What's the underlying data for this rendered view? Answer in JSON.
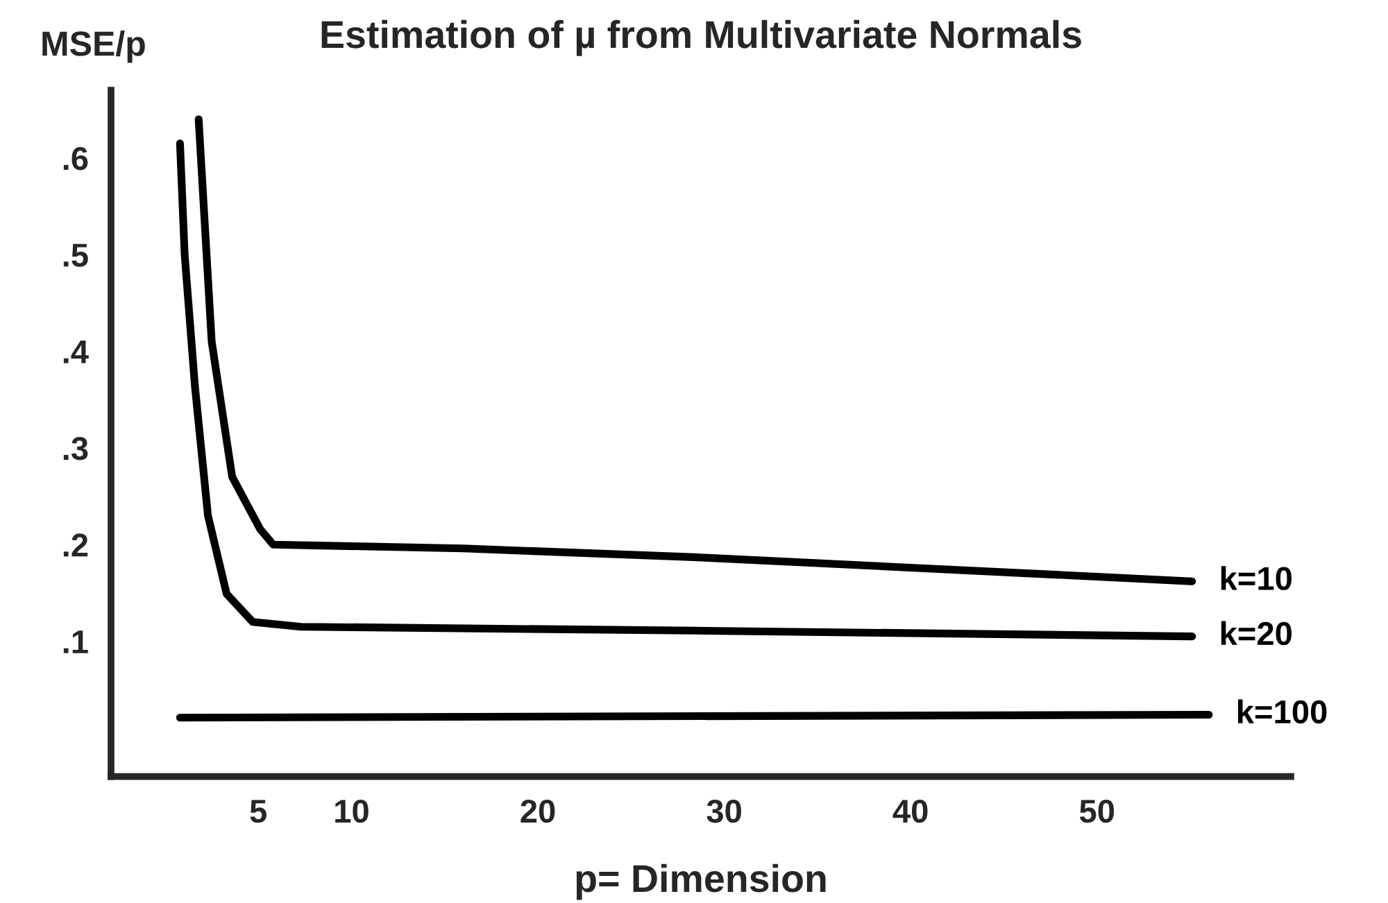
{
  "chart_data": {
    "type": "line",
    "title": "Estimation of µ from Multivariate Normals",
    "xlabel": "p= Dimension",
    "ylabel": "MSE/p",
    "xlim": [
      -2.9,
      60.4
    ],
    "ylim": [
      -0.04,
      0.67
    ],
    "xticks": [
      5,
      10,
      20,
      30,
      40,
      50
    ],
    "yticks": [
      {
        "value": 0.1,
        "label": ".1"
      },
      {
        "value": 0.2,
        "label": ".2"
      },
      {
        "value": 0.3,
        "label": ".3"
      },
      {
        "value": 0.4,
        "label": ".4"
      },
      {
        "value": 0.5,
        "label": ".5"
      },
      {
        "value": 0.6,
        "label": ".6"
      }
    ],
    "grid": false,
    "legend": false,
    "marker": "none",
    "line_style": "solid",
    "series": [
      {
        "name": "k=10",
        "color": "#000000",
        "x": [
          1.8,
          2.5,
          3.6,
          5.1,
          5.8,
          16,
          28.4,
          55.1
        ],
        "values": [
          0.64,
          0.41,
          0.27,
          0.216,
          0.2,
          0.196,
          0.187,
          0.162
        ]
      },
      {
        "name": "k=20",
        "color": "#000000",
        "x": [
          0.8,
          1.05,
          1.6,
          2.3,
          3.3,
          4.7,
          7.3,
          28.4,
          55.1
        ],
        "values": [
          0.615,
          0.5,
          0.364,
          0.23,
          0.149,
          0.12,
          0.115,
          0.111,
          0.105
        ]
      },
      {
        "name": "k=100",
        "color": "#000000",
        "x": [
          0.8,
          56
        ],
        "values": [
          0.021,
          0.024
        ]
      }
    ]
  }
}
